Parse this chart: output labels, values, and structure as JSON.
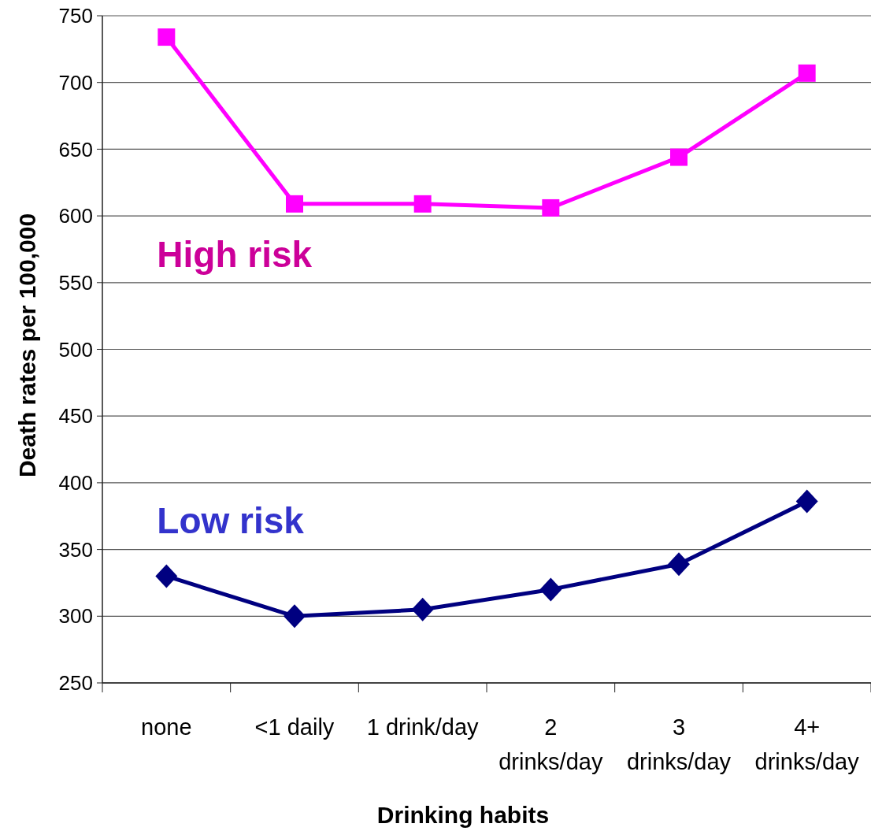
{
  "chart_data": {
    "type": "line",
    "xlabel": "Drinking habits",
    "ylabel": "Death rates per 100,000",
    "categories": [
      "none",
      "<1 daily",
      "1 drink/day",
      "2 drinks/day",
      "3 drinks/day",
      "4+ drinks/day"
    ],
    "series": [
      {
        "name": "High risk",
        "color": "#ff00ff",
        "marker": "square",
        "values": [
          734,
          609,
          609,
          606,
          644,
          707
        ]
      },
      {
        "name": "Low risk",
        "color": "#000080",
        "marker": "diamond",
        "values": [
          330,
          300,
          305,
          320,
          339,
          386
        ]
      }
    ],
    "ylim": [
      250,
      750
    ],
    "yticks": [
      250,
      300,
      350,
      400,
      450,
      500,
      550,
      600,
      650,
      700,
      750
    ],
    "grid": "y"
  }
}
